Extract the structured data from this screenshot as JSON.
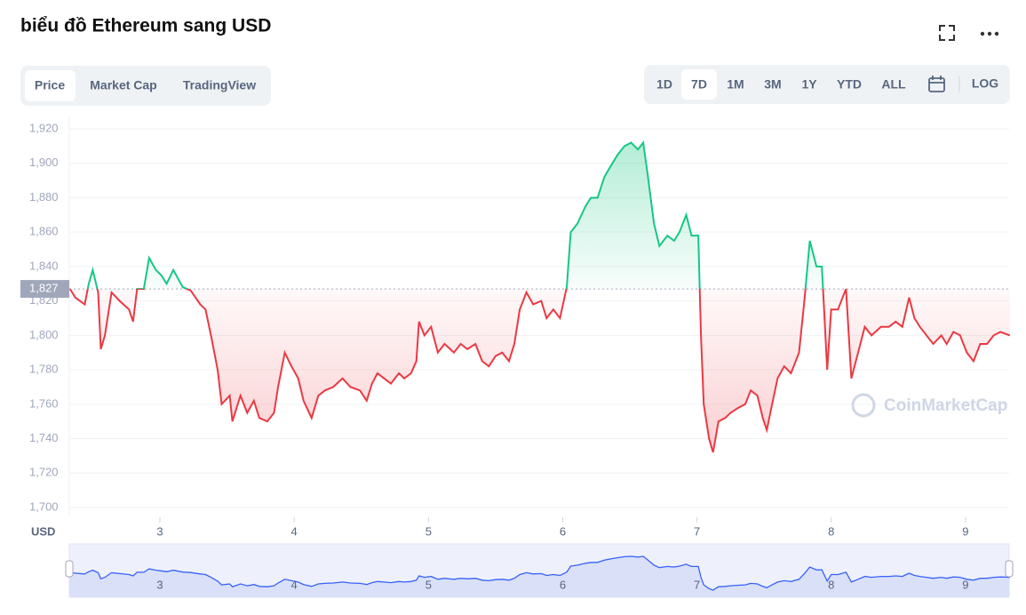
{
  "header": {
    "title": "biểu đồ Ethereum sang USD"
  },
  "tabs": [
    "Price",
    "Market Cap",
    "TradingView"
  ],
  "ranges": [
    "1D",
    "7D",
    "1M",
    "3M",
    "1Y",
    "YTD",
    "ALL"
  ],
  "log_button": "LOG",
  "chart_data": {
    "type": "line",
    "y_unit_label": "USD",
    "watermark": "CoinMarketCap",
    "reference_value": {
      "value": 1827,
      "label": "1,827"
    },
    "up_color": "#16c784",
    "down_color": "#ea3943",
    "grid": true,
    "xlim": [
      2.325,
      9.325
    ],
    "xticks": [
      3,
      4,
      5,
      6,
      7,
      8,
      9
    ],
    "ylim": [
      1700,
      1920
    ],
    "yticks": [
      {
        "value": 1700,
        "label": "1,700"
      },
      {
        "value": 1720,
        "label": "1,720"
      },
      {
        "value": 1740,
        "label": "1,740"
      },
      {
        "value": 1760,
        "label": "1,760"
      },
      {
        "value": 1780,
        "label": "1,780"
      },
      {
        "value": 1800,
        "label": "1,800"
      },
      {
        "value": 1820,
        "label": "1,820"
      },
      {
        "value": 1840,
        "label": "1,840"
      },
      {
        "value": 1860,
        "label": "1,860"
      },
      {
        "value": 1880,
        "label": "1,880"
      },
      {
        "value": 1900,
        "label": "1,900"
      },
      {
        "value": 1920,
        "label": "1,920"
      }
    ],
    "x": [
      2.33,
      2.37,
      2.44,
      2.47,
      2.5,
      2.54,
      2.56,
      2.59,
      2.64,
      2.7,
      2.77,
      2.8,
      2.83,
      2.88,
      2.92,
      2.97,
      3.01,
      3.05,
      3.1,
      3.17,
      3.23,
      3.3,
      3.34,
      3.38,
      3.43,
      3.46,
      3.52,
      3.54,
      3.6,
      3.65,
      3.7,
      3.74,
      3.8,
      3.85,
      3.88,
      3.93,
      3.98,
      4.03,
      4.07,
      4.13,
      4.18,
      4.23,
      4.29,
      4.36,
      4.42,
      4.49,
      4.54,
      4.58,
      4.62,
      4.67,
      4.72,
      4.78,
      4.82,
      4.87,
      4.91,
      4.93,
      4.97,
      5.02,
      5.07,
      5.12,
      5.19,
      5.24,
      5.29,
      5.35,
      5.4,
      5.45,
      5.5,
      5.55,
      5.6,
      5.64,
      5.68,
      5.73,
      5.78,
      5.84,
      5.88,
      5.93,
      5.98,
      6.03,
      6.06,
      6.11,
      6.17,
      6.21,
      6.26,
      6.31,
      6.37,
      6.41,
      6.46,
      6.51,
      6.56,
      6.6,
      6.63,
      6.68,
      6.72,
      6.78,
      6.83,
      6.87,
      6.92,
      6.96,
      7.01,
      7.03,
      7.05,
      7.09,
      7.12,
      7.16,
      7.21,
      7.25,
      7.31,
      7.36,
      7.4,
      7.45,
      7.49,
      7.52,
      7.56,
      7.6,
      7.65,
      7.7,
      7.76,
      7.8,
      7.84,
      7.89,
      7.93,
      7.97,
      8.0,
      8.05,
      8.09,
      8.11,
      8.15,
      8.2,
      8.25,
      8.3,
      8.37,
      8.43,
      8.48,
      8.53,
      8.58,
      8.62,
      8.66,
      8.71,
      8.76,
      8.82,
      8.86,
      8.91,
      8.96,
      9.01,
      9.06,
      9.11,
      9.16,
      9.21,
      9.26,
      9.33
    ],
    "series": [
      {
        "name": "Price",
        "values": [
          1827,
          1822,
          1818,
          1830,
          1838,
          1825,
          1792,
          1800,
          1825,
          1820,
          1815,
          1808,
          1827,
          1827,
          1845,
          1838,
          1835,
          1830,
          1838,
          1828,
          1826,
          1818,
          1815,
          1800,
          1780,
          1760,
          1765,
          1750,
          1765,
          1755,
          1762,
          1752,
          1750,
          1755,
          1770,
          1790,
          1782,
          1775,
          1762,
          1752,
          1765,
          1768,
          1770,
          1775,
          1770,
          1768,
          1762,
          1772,
          1778,
          1775,
          1772,
          1778,
          1775,
          1778,
          1785,
          1808,
          1800,
          1805,
          1790,
          1795,
          1790,
          1795,
          1792,
          1795,
          1785,
          1782,
          1788,
          1790,
          1785,
          1795,
          1815,
          1825,
          1818,
          1820,
          1810,
          1815,
          1810,
          1828,
          1860,
          1865,
          1875,
          1880,
          1880,
          1892,
          1900,
          1905,
          1910,
          1912,
          1908,
          1912,
          1895,
          1865,
          1852,
          1858,
          1855,
          1860,
          1870,
          1858,
          1858,
          1800,
          1760,
          1740,
          1732,
          1750,
          1752,
          1755,
          1758,
          1760,
          1768,
          1765,
          1752,
          1745,
          1760,
          1775,
          1782,
          1778,
          1790,
          1820,
          1855,
          1840,
          1840,
          1780,
          1815,
          1815,
          1823,
          1827,
          1775,
          1790,
          1805,
          1800,
          1805,
          1805,
          1808,
          1805,
          1822,
          1810,
          1805,
          1800,
          1795,
          1800,
          1795,
          1802,
          1800,
          1790,
          1785,
          1795,
          1795,
          1800,
          1802,
          1800
        ]
      }
    ]
  }
}
